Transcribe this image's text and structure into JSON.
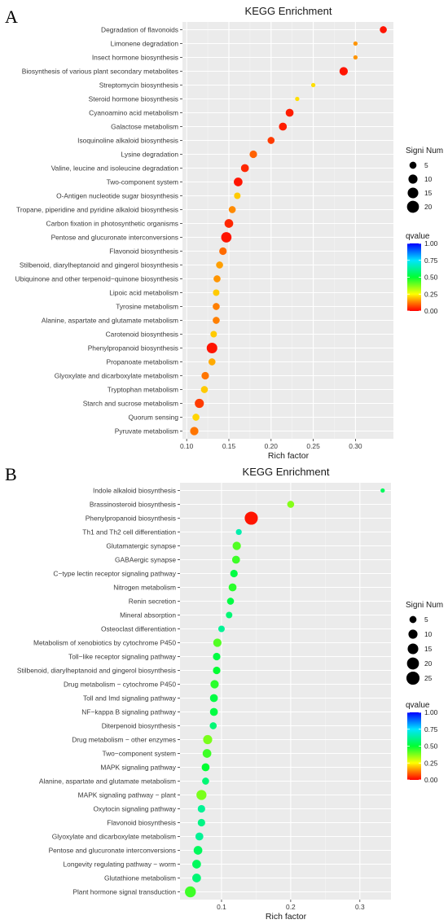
{
  "chart_data": [
    {
      "type": "scatter",
      "panel_label": "A",
      "title": "KEGG Enrichment",
      "xlabel": "Rich factor",
      "ylabel": "",
      "xlim": [
        0.095,
        0.345
      ],
      "xticks": [
        0.1,
        0.15,
        0.2,
        0.25,
        0.3
      ],
      "xtick_labels": [
        "0.10",
        "0.15",
        "0.20",
        "0.25",
        "0.30"
      ],
      "categories": [
        "Degradation of flavonoids",
        "Limonene degradation",
        "Insect hormone biosynthesis",
        "Biosynthesis of various plant secondary metabolites",
        "Streptomycin biosynthesis",
        "Steroid hormone biosynthesis",
        "Cyanoamino acid metabolism",
        "Galactose metabolism",
        "Isoquinoline alkaloid biosynthesis",
        "Lysine degradation",
        "Valine, leucine and isoleucine degradation",
        "Two-component system",
        "O-Antigen nucleotide sugar biosynthesis",
        "Tropane, piperidine and pyridine alkaloid biosynthesis",
        "Carbon fixation in photosynthetic organisms",
        "Pentose and glucuronate interconversions",
        "Flavonoid biosynthesis",
        "Stilbenoid, diarylheptanoid and gingerol biosynthesis",
        "Ubiquinone and other terpenoid−quinone biosynthesis",
        "Lipoic acid metabolism",
        "Tyrosine metabolism",
        "Alanine, aspartate and glutamate metabolism",
        "Carotenoid biosynthesis",
        "Phenylpropanoid biosynthesis",
        "Propanoate metabolism",
        "Glyoxylate and dicarboxylate metabolism",
        "Tryptophan metabolism",
        "Starch and sucrose metabolism",
        "Quorum sensing",
        "Pyruvate metabolism"
      ],
      "rich_factor": [
        0.333,
        0.3,
        0.3,
        0.286,
        0.25,
        0.231,
        0.222,
        0.214,
        0.2,
        0.179,
        0.169,
        0.161,
        0.16,
        0.154,
        0.15,
        0.147,
        0.143,
        0.139,
        0.136,
        0.135,
        0.135,
        0.135,
        0.132,
        0.13,
        0.13,
        0.122,
        0.121,
        0.115,
        0.111,
        0.109
      ],
      "signi_num": [
        5,
        1,
        1,
        8,
        1,
        1,
        7,
        7,
        5,
        6,
        7,
        9,
        4,
        5,
        9,
        14,
        6,
        5,
        5,
        4,
        5,
        5,
        4,
        15,
        5,
        6,
        5,
        10,
        5,
        8
      ],
      "qvalue": [
        0.02,
        0.15,
        0.15,
        0.02,
        0.22,
        0.22,
        0.03,
        0.03,
        0.06,
        0.1,
        0.04,
        0.02,
        0.2,
        0.14,
        0.04,
        0.02,
        0.11,
        0.16,
        0.15,
        0.2,
        0.13,
        0.13,
        0.2,
        0.02,
        0.17,
        0.12,
        0.2,
        0.06,
        0.21,
        0.12
      ],
      "size_legend": {
        "title": "Signi Num",
        "values": [
          5,
          10,
          15,
          20
        ]
      },
      "color_legend": {
        "title": "qvalue",
        "ticks": [
          1.0,
          0.75,
          0.5,
          0.25,
          0.0
        ],
        "tick_labels": [
          "1.00",
          "0.75",
          "0.50",
          "0.25",
          "0.00"
        ]
      },
      "grid": true,
      "legend_position": "right"
    },
    {
      "type": "scatter",
      "panel_label": "B",
      "title": "KEGG Enrichment",
      "xlabel": "Rich factor",
      "ylabel": "",
      "xlim": [
        0.04,
        0.345
      ],
      "xticks": [
        0.1,
        0.2,
        0.3
      ],
      "xtick_labels": [
        "0.1",
        "0.2",
        "0.3"
      ],
      "categories": [
        "Indole alkaloid biosynthesis",
        "Brassinosteroid biosynthesis",
        "Phenylpropanoid biosynthesis",
        "Th1 and Th2 cell differentiation",
        "Glutamatergic synapse",
        "GABAergic synapse",
        "C−type lectin receptor signaling pathway",
        "Nitrogen metabolism",
        "Renin secretion",
        "Mineral absorption",
        "Osteoclast differentiation",
        "Metabolism of xenobiotics by cytochrome P450",
        "Toll−like receptor signaling pathway",
        "Stilbenoid, diarylheptanoid and gingerol biosynthesis",
        "Drug metabolism − cytochrome P450",
        "Toll and Imd signaling pathway",
        "NF−kappa B signaling pathway",
        "Diterpenoid biosynthesis",
        "Drug metabolism − other enzymes",
        "Two−component system",
        "MAPK signaling pathway",
        "Alanine, aspartate and glutamate metabolism",
        "MAPK signaling pathway − plant",
        "Oxytocin signaling pathway",
        "Flavonoid biosynthesis",
        "Glyoxylate and dicarboxylate metabolism",
        "Pentose and glucuronate interconversions",
        "Longevity regulating pathway − worm",
        "Glutathione metabolism",
        "Plant hormone signal transduction"
      ],
      "rich_factor": [
        0.333,
        0.2,
        0.143,
        0.125,
        0.122,
        0.121,
        0.118,
        0.116,
        0.113,
        0.111,
        0.1,
        0.094,
        0.093,
        0.093,
        0.09,
        0.089,
        0.089,
        0.088,
        0.08,
        0.079,
        0.077,
        0.077,
        0.071,
        0.071,
        0.071,
        0.068,
        0.066,
        0.064,
        0.064,
        0.055
      ],
      "signi_num": [
        1,
        5,
        25,
        3,
        8,
        7,
        6,
        7,
        5,
        4,
        4,
        8,
        6,
        6,
        8,
        7,
        7,
        5,
        10,
        9,
        7,
        5,
        13,
        6,
        6,
        7,
        9,
        9,
        9,
        16
      ],
      "qvalue": [
        0.55,
        0.37,
        0.02,
        0.65,
        0.42,
        0.44,
        0.52,
        0.46,
        0.52,
        0.58,
        0.62,
        0.42,
        0.52,
        0.5,
        0.46,
        0.52,
        0.52,
        0.58,
        0.38,
        0.44,
        0.5,
        0.58,
        0.38,
        0.62,
        0.6,
        0.62,
        0.55,
        0.55,
        0.58,
        0.44
      ],
      "size_legend": {
        "title": "Signi Num",
        "values": [
          5,
          10,
          15,
          20,
          25
        ]
      },
      "color_legend": {
        "title": "qvalue",
        "ticks": [
          1.0,
          0.75,
          0.5,
          0.25,
          0.0
        ],
        "tick_labels": [
          "1.00",
          "0.75",
          "0.50",
          "0.25",
          "0.00"
        ]
      },
      "grid": true,
      "legend_position": "right"
    }
  ]
}
